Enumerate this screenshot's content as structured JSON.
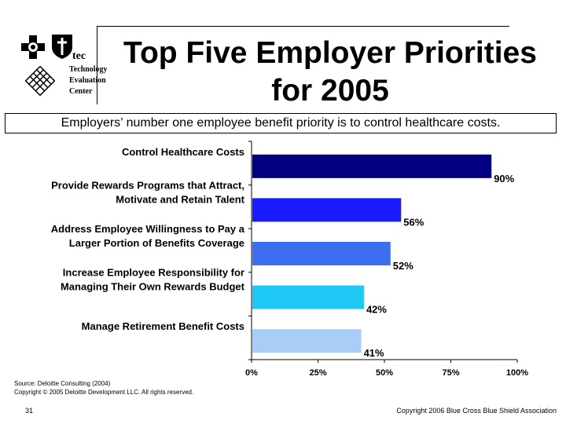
{
  "header": {
    "title_line1": "Top Five Employer Priorities",
    "title_line2": "for 2005",
    "subtitle": "Employers’ number one employee benefit priority is to control healthcare costs."
  },
  "logo": {
    "tec_mark": "tec",
    "tec_words": [
      "Technology",
      "Evaluation",
      "Center"
    ]
  },
  "chart_data": {
    "type": "bar",
    "orientation": "horizontal",
    "categories": [
      [
        "Control Healthcare Costs"
      ],
      [
        "Provide Rewards Programs that Attract,",
        "Motivate and Retain Talent"
      ],
      [
        "Address Employee Willingness to Pay a",
        "Larger Portion of Benefits Coverage"
      ],
      [
        "Increase Employee Responsibility for",
        "Managing Their Own Rewards Budget"
      ],
      [
        "Manage Retirement Benefit Costs"
      ]
    ],
    "values": [
      90,
      56,
      52,
      42,
      41
    ],
    "value_labels": [
      "90%",
      "56%",
      "52%",
      "42%",
      "41%"
    ],
    "bar_colors": [
      "#000080",
      "#1a1aff",
      "#3d6ef0",
      "#1ec8f5",
      "#a8cdf7"
    ],
    "xlim": [
      0,
      100
    ],
    "xticks": [
      "0%",
      "25%",
      "50%",
      "75%",
      "100%"
    ],
    "grid": false,
    "legend": "none"
  },
  "footer": {
    "source_line1": "Source: Deloitte Consulting (2004)",
    "source_line2": "Copyright © 2005 Deloitte Development LLC. All rights reserved.",
    "page_number": "31",
    "copyright": "Copyright 2006 Blue Cross Blue Shield Association"
  }
}
